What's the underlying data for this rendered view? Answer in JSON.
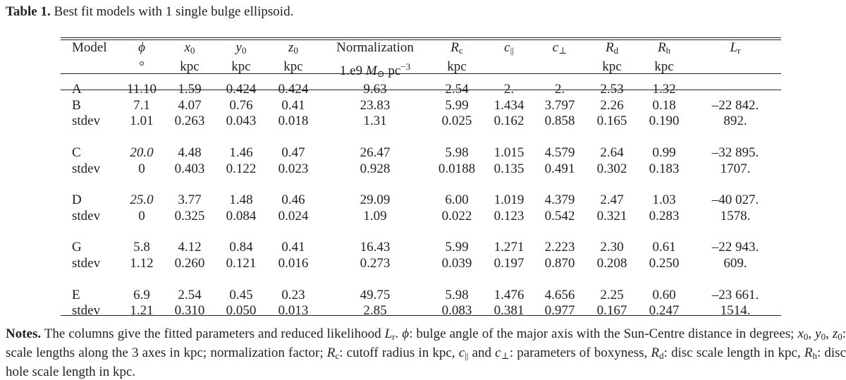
{
  "caption": {
    "label": "Table 1.",
    "text": "Best fit models with 1 single bulge ellipsoid."
  },
  "header": {
    "model": "Model",
    "phi": "ϕ",
    "phi_unit": "°",
    "x0": "x",
    "x0_sub": "0",
    "x0_unit": "kpc",
    "y0": "y",
    "y0_sub": "0",
    "y0_unit": "kpc",
    "z0": "z",
    "z0_sub": "0",
    "z0_unit": "kpc",
    "norm": "Normalization",
    "norm_unit_a": "1.e9 ",
    "norm_unit_m": "M",
    "norm_unit_sun": "⊙",
    "norm_unit_b": " pc",
    "norm_unit_exp": "−3",
    "rc": "R",
    "rc_sub": "c",
    "rc_unit": "kpc",
    "cpar": "c",
    "cpar_sub": "||",
    "cperp": "c",
    "cperp_sub": "⊥",
    "rd": "R",
    "rd_sub": "d",
    "rd_unit": "kpc",
    "rh": "R",
    "rh_sub": "h",
    "rh_unit": "kpc",
    "lr": "L",
    "lr_sub": "r"
  },
  "rows": [
    {
      "model": "A",
      "phi": "11.10",
      "x0": "1.59",
      "y0": "0.424",
      "z0": "0.424",
      "norm": "9.63",
      "rc": "2.54",
      "cpar": "2.",
      "cperp": "2.",
      "rd": "2.53",
      "rh": "1.32",
      "lr": "–"
    },
    {
      "model": "B",
      "phi": "7.1",
      "x0": "4.07",
      "y0": "0.76",
      "z0": "0.41",
      "norm": "23.83",
      "rc": "5.99",
      "cpar": "1.434",
      "cperp": "3.797",
      "rd": "2.26",
      "rh": "0.18",
      "lr": "–22 842."
    },
    {
      "model": "stdev",
      "phi": "1.01",
      "x0": "0.263",
      "y0": "0.043",
      "z0": "0.018",
      "norm": "1.31",
      "rc": "0.025",
      "cpar": "0.162",
      "cperp": "0.858",
      "rd": "0.165",
      "rh": "0.190",
      "lr": "892."
    },
    {
      "model": "C",
      "phi": "20.0",
      "x0": "4.48",
      "y0": "1.46",
      "z0": "0.47",
      "norm": "26.47",
      "rc": "5.98",
      "cpar": "1.015",
      "cperp": "4.579",
      "rd": "2.64",
      "rh": "0.99",
      "lr": "–32 895."
    },
    {
      "model": "stdev",
      "phi": "0",
      "x0": "0.403",
      "y0": "0.122",
      "z0": "0.023",
      "norm": "0.928",
      "rc": "0.0188",
      "cpar": "0.135",
      "cperp": "0.491",
      "rd": "0.302",
      "rh": "0.183",
      "lr": "1707."
    },
    {
      "model": "D",
      "phi": "25.0",
      "x0": "3.77",
      "y0": "1.48",
      "z0": "0.46",
      "norm": "29.09",
      "rc": "6.00",
      "cpar": "1.019",
      "cperp": "4.379",
      "rd": "2.47",
      "rh": "1.03",
      "lr": "–40 027."
    },
    {
      "model": "stdev",
      "phi": "0",
      "x0": "0.325",
      "y0": "0.084",
      "z0": "0.024",
      "norm": "1.09",
      "rc": "0.022",
      "cpar": "0.123",
      "cperp": "0.542",
      "rd": "0.321",
      "rh": "0.283",
      "lr": "1578."
    },
    {
      "model": "G",
      "phi": "5.8",
      "x0": "4.12",
      "y0": "0.84",
      "z0": "0.41",
      "norm": "16.43",
      "rc": "5.99",
      "cpar": "1.271",
      "cperp": "2.223",
      "rd": "2.30",
      "rh": "0.61",
      "lr": "–22 943."
    },
    {
      "model": "stdev",
      "phi": "1.12",
      "x0": "0.260",
      "y0": "0.121",
      "z0": "0.016",
      "norm": "0.273",
      "rc": "0.039",
      "cpar": "0.197",
      "cperp": "0.870",
      "rd": "0.208",
      "rh": "0.250",
      "lr": "609."
    },
    {
      "model": "E",
      "phi": "6.9",
      "x0": "2.54",
      "y0": "0.45",
      "z0": "0.23",
      "norm": "49.75",
      "rc": "5.98",
      "cpar": "1.476",
      "cperp": "4.656",
      "rd": "2.25",
      "rh": "0.60",
      "lr": "–23 661."
    },
    {
      "model": "stdev",
      "phi": "1.21",
      "x0": "0.310",
      "y0": "0.050",
      "z0": "0.013",
      "norm": "2.85",
      "rc": "0.083",
      "cpar": "0.381",
      "cperp": "0.977",
      "rd": "0.167",
      "rh": "0.247",
      "lr": "1514."
    }
  ],
  "notes": {
    "label": "Notes.",
    "t1": " The columns give the fitted parameters and reduced likelihood ",
    "t1_var": "L",
    "t1_sub": "r",
    "t2": ". ",
    "t2_var": "ϕ",
    "t3": ": bulge angle of the major axis with the Sun-Centre distance in degrees; ",
    "t4_x": "x",
    "t4_xs": "0",
    "t4_c1": ", ",
    "t4_y": "y",
    "t4_ys": "0",
    "t4_c2": ", ",
    "t4_z": "z",
    "t4_zs": "0",
    "t5": ": scale lengths along the 3 axes in kpc; normalization factor; ",
    "t5_var": "R",
    "t5_sub": "c",
    "t6": ": cutoff radius in kpc, ",
    "t6_var": "c",
    "t6_sub": "||",
    "t7": " and ",
    "t7_var": "c",
    "t7_sub": "⊥",
    "t8": ": parameters of boxyness, ",
    "t8_var": "R",
    "t8_sub": "d",
    "t9": ": disc scale length in kpc, ",
    "t9_var": "R",
    "t9_sub": "h",
    "t10": ": disc hole scale length in kpc."
  }
}
